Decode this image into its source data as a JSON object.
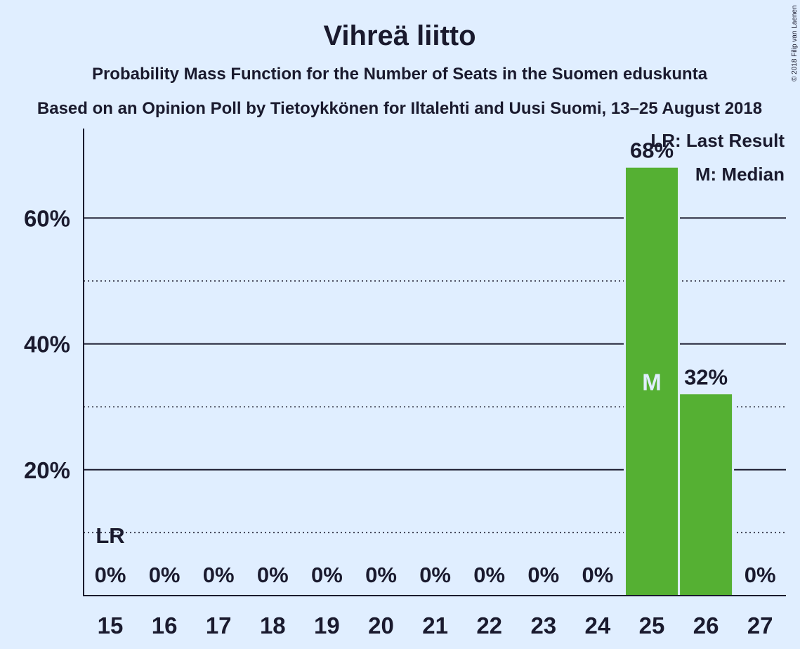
{
  "chart_data": {
    "type": "bar",
    "title": "Vihreä liitto",
    "subtitle": "Probability Mass Function for the Number of Seats in the Suomen eduskunta",
    "subtitle2": "Based on an Opinion Poll by Tietoykkönen for Iltalehti and Uusi Suomi, 13–25 August 2018",
    "copyright": "© 2018 Filip van Laenen",
    "categories": [
      "15",
      "16",
      "17",
      "18",
      "19",
      "20",
      "21",
      "22",
      "23",
      "24",
      "25",
      "26",
      "27"
    ],
    "values": [
      0,
      0,
      0,
      0,
      0,
      0,
      0,
      0,
      0,
      0,
      68,
      32,
      0
    ],
    "value_labels": [
      "0%",
      "0%",
      "0%",
      "0%",
      "0%",
      "0%",
      "0%",
      "0%",
      "0%",
      "0%",
      "68%",
      "32%",
      "0%"
    ],
    "ylim": [
      0,
      74
    ],
    "yticks": [
      {
        "value": 20,
        "label": "20%"
      },
      {
        "value": 40,
        "label": "40%"
      },
      {
        "value": 60,
        "label": "60%"
      }
    ],
    "minor_gridlines": [
      10,
      30,
      50
    ],
    "last_result": {
      "category": "15",
      "marker": "LR"
    },
    "median": {
      "category": "25",
      "marker": "M"
    },
    "legend": {
      "position": "top-right",
      "items": [
        "LR: Last Result",
        "M: Median"
      ]
    },
    "bar_color": "#55b033",
    "background": "#e0eeff"
  }
}
